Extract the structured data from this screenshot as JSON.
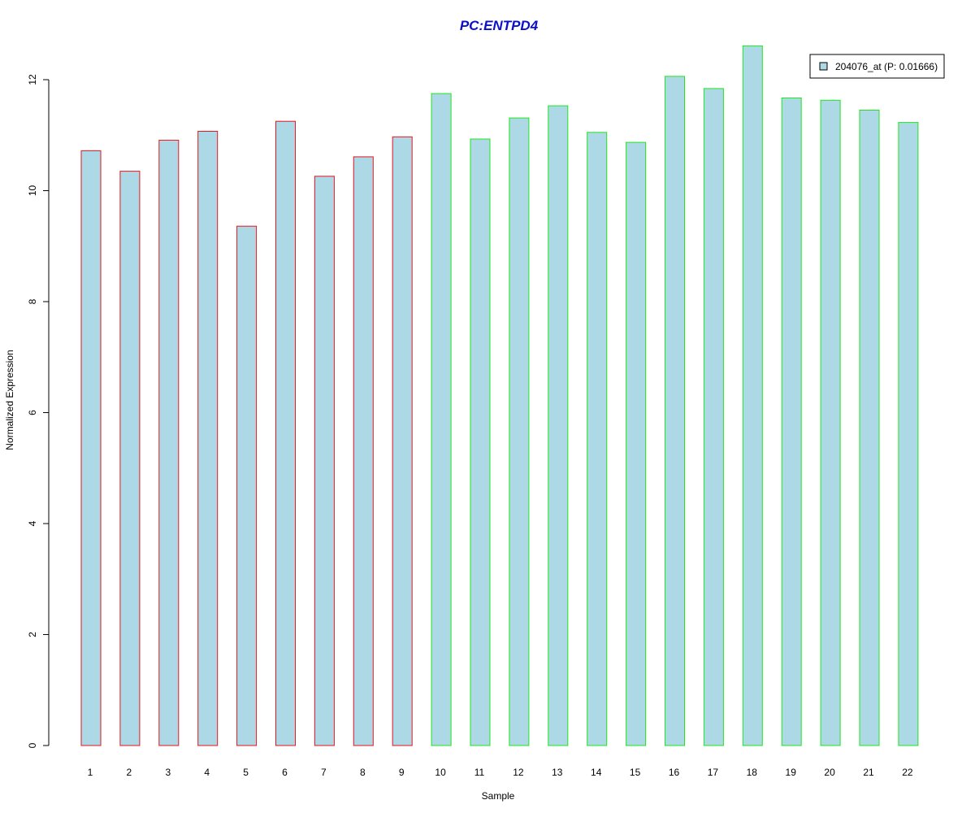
{
  "chart_data": {
    "type": "bar",
    "title": "PC:ENTPD4",
    "xlabel": "Sample",
    "ylabel": "Normalized Expression",
    "ylim": [
      0,
      12
    ],
    "yticks": [
      0,
      2,
      4,
      6,
      8,
      10,
      12
    ],
    "categories": [
      "1",
      "2",
      "3",
      "4",
      "5",
      "6",
      "7",
      "8",
      "9",
      "10",
      "11",
      "12",
      "13",
      "14",
      "15",
      "16",
      "17",
      "18",
      "19",
      "20",
      "21",
      "22"
    ],
    "series": [
      {
        "name": "204076_at (P: 0.01666)",
        "values": [
          10.72,
          10.35,
          10.91,
          11.07,
          9.36,
          11.25,
          10.26,
          10.61,
          10.97,
          11.75,
          10.93,
          11.31,
          11.53,
          11.05,
          10.87,
          12.06,
          11.84,
          12.61,
          11.67,
          11.63,
          11.45,
          11.23
        ]
      }
    ],
    "groups": [
      {
        "samples": [
          1,
          2,
          3,
          4,
          5,
          6,
          7,
          8,
          9
        ],
        "border_color": "#e8141e"
      },
      {
        "samples": [
          10,
          11,
          12,
          13,
          14,
          15,
          16,
          17,
          18,
          19,
          20,
          21,
          22
        ],
        "border_color": "#1ee61e"
      }
    ],
    "bar_fill": "#add8e6",
    "title_color": "#0a10c8",
    "legend_position": "top-right",
    "grid": false
  }
}
